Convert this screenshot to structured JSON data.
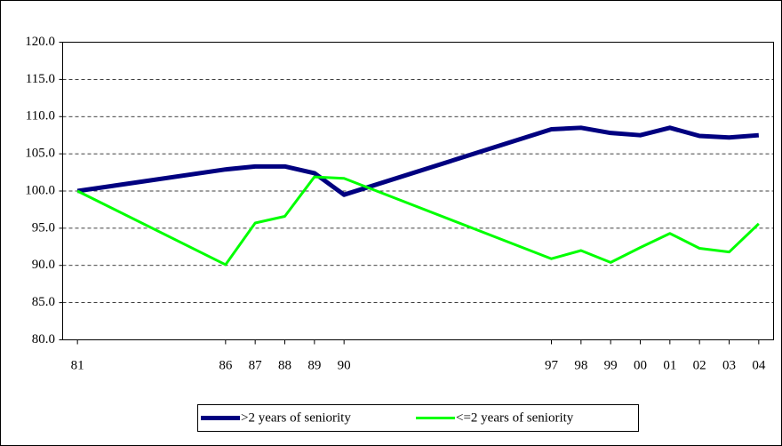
{
  "chart_data": {
    "type": "line",
    "x": [
      81,
      86,
      87,
      88,
      89,
      90,
      97,
      98,
      99,
      100,
      101,
      102,
      103,
      104
    ],
    "series": [
      {
        "name": ">2 years of seniority",
        "color": "#000080",
        "values": [
          100,
          102.9,
          103.3,
          103.3,
          102.4,
          99.5,
          108.3,
          108.5,
          107.8,
          107.5,
          108.5,
          107.4,
          107.2,
          107.5
        ]
      },
      {
        "name": "<=2 years of seniority",
        "color": "#00ff00",
        "values": [
          100,
          90.1,
          95.7,
          96.6,
          101.9,
          101.7,
          90.9,
          92.0,
          90.4,
          92.4,
          94.3,
          92.3,
          91.8,
          95.6
        ]
      }
    ],
    "xlim": [
      80.5,
      104.5
    ],
    "xticks": [
      81,
      86,
      87,
      88,
      89,
      90,
      97,
      98,
      99,
      {
        "value": 100,
        "label": "00"
      },
      {
        "value": 101,
        "label": "01"
      },
      {
        "value": 102,
        "label": "02"
      },
      {
        "value": 103,
        "label": "03"
      },
      {
        "value": 104,
        "label": "04"
      }
    ],
    "ylim": [
      80,
      120
    ],
    "yticks": [
      {
        "value": 80,
        "label": "80.0"
      },
      {
        "value": 85,
        "label": "85.0"
      },
      {
        "value": 90,
        "label": "90.0"
      },
      {
        "value": 95,
        "label": "95.0"
      },
      {
        "value": 100,
        "label": "100.0"
      },
      {
        "value": 105,
        "label": "105.0"
      },
      {
        "value": 110,
        "label": "110.0"
      },
      {
        "value": 115,
        "label": "115.0"
      },
      {
        "value": 120,
        "label": "120.0"
      }
    ],
    "grid": true
  }
}
